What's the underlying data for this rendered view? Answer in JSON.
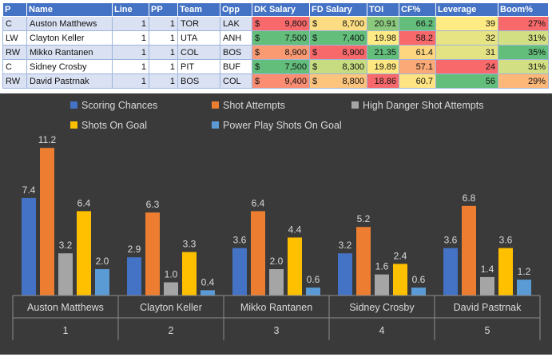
{
  "table": {
    "headers": [
      "P",
      "Name",
      "Line",
      "PP",
      "Team",
      "Opp",
      "DK Salary",
      "FD Salary",
      "TOI",
      "CF%",
      "Leverage",
      "Boom%"
    ],
    "rows": [
      {
        "p": "C",
        "name": "Auston Matthews",
        "line": "1",
        "pp": "1",
        "team": "TOR",
        "opp": "LAK",
        "dk_cur": "$",
        "dk": "9,800",
        "fd_cur": "$",
        "fd": "8,700",
        "toi": "20.91",
        "cf": "66.2",
        "leverage": "39",
        "boom": "27%"
      },
      {
        "p": "LW",
        "name": "Clayton Keller",
        "line": "1",
        "pp": "1",
        "team": "UTA",
        "opp": "ANH",
        "dk_cur": "$",
        "dk": "7,500",
        "fd_cur": "$",
        "fd": "7,400",
        "toi": "19.98",
        "cf": "58.2",
        "leverage": "32",
        "boom": "31%"
      },
      {
        "p": "RW",
        "name": "Mikko Rantanen",
        "line": "1",
        "pp": "1",
        "team": "COL",
        "opp": "BOS",
        "dk_cur": "$",
        "dk": "8,900",
        "fd_cur": "$",
        "fd": "8,900",
        "toi": "21.35",
        "cf": "61.4",
        "leverage": "31",
        "boom": "35%"
      },
      {
        "p": "C",
        "name": "Sidney Crosby",
        "line": "1",
        "pp": "1",
        "team": "PIT",
        "opp": "BUF",
        "dk_cur": "$",
        "dk": "7,500",
        "fd_cur": "$",
        "fd": "8,300",
        "toi": "19.89",
        "cf": "57.1",
        "leverage": "24",
        "boom": "31%"
      },
      {
        "p": "RW",
        "name": "David Pastrnak",
        "line": "1",
        "pp": "1",
        "team": "BOS",
        "opp": "COL",
        "dk_cur": "$",
        "dk": "9,400",
        "fd_cur": "$",
        "fd": "8,800",
        "toi": "18.86",
        "cf": "60.7",
        "leverage": "56",
        "boom": "29%"
      }
    ],
    "colors": {
      "dk": [
        "#f8696b",
        "#63be7b",
        "#fa9a73",
        "#63be7b",
        "#fa8d72"
      ],
      "fd": [
        "#fcdc82",
        "#63be7b",
        "#f8696b",
        "#c7db80",
        "#fcc47d"
      ],
      "toi": [
        "#8bc97d",
        "#ffeb84",
        "#63be7b",
        "#ffe882",
        "#f8696b"
      ],
      "cf": [
        "#63be7b",
        "#f8696b",
        "#ffd680",
        "#fbaa77",
        "#fee383"
      ],
      "leverage": [
        "#ffeb84",
        "#e7e483",
        "#e4e383",
        "#f8696b",
        "#63be7b"
      ],
      "boom": [
        "#f8696b",
        "#d2df82",
        "#63be7b",
        "#d2df82",
        "#fdb779"
      ]
    }
  },
  "chart_data": {
    "type": "bar",
    "categories": [
      "Auston Matthews",
      "Clayton Keller",
      "Mikko Rantanen",
      "Sidney Crosby",
      "David Pastrnak"
    ],
    "category_numbers": [
      "1",
      "2",
      "3",
      "4",
      "5"
    ],
    "series": [
      {
        "name": "Scoring Chances",
        "color": "#4472c4",
        "values": [
          7.4,
          2.9,
          3.6,
          3.2,
          3.6
        ]
      },
      {
        "name": "Shot Attempts",
        "color": "#ed7d31",
        "values": [
          11.2,
          6.3,
          6.4,
          5.2,
          6.8
        ]
      },
      {
        "name": "High Danger Shot Attempts",
        "color": "#a5a5a5",
        "values": [
          3.2,
          1.0,
          2.0,
          1.6,
          1.4
        ]
      },
      {
        "name": "Shots On Goal",
        "color": "#ffc000",
        "values": [
          6.4,
          3.3,
          4.4,
          2.4,
          3.6
        ]
      },
      {
        "name": "Power Play Shots On Goal",
        "color": "#5b9bd5",
        "values": [
          2.0,
          0.4,
          0.6,
          0.6,
          1.2
        ]
      }
    ],
    "value_labels": [
      [
        "7.4",
        "2.9",
        "3.6",
        "3.2",
        "3.6"
      ],
      [
        "11.2",
        "6.3",
        "6.4",
        "5.2",
        "6.8"
      ],
      [
        "3.2",
        "1.0",
        "2.0",
        "1.6",
        "1.4"
      ],
      [
        "6.4",
        "3.3",
        "4.4",
        "2.4",
        "3.6"
      ],
      [
        "2.0",
        "0.4",
        "0.6",
        "0.6",
        "1.2"
      ]
    ],
    "ylim": [
      0,
      12
    ],
    "legend_position": "top",
    "grid": false
  }
}
